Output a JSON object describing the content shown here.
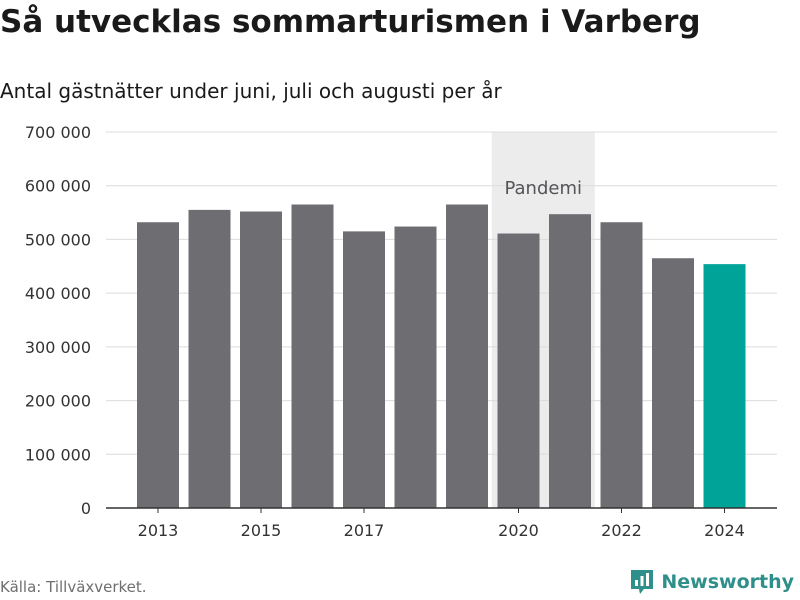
{
  "header": {
    "title": "Så utvecklas sommarturismen i Varberg",
    "subtitle": "Antal gästnätter under juni, juli och augusti per år"
  },
  "footer": {
    "source": "Källa: Tillväxverket.",
    "brand": "Newsworthy"
  },
  "colors": {
    "bar": "#6e6d72",
    "highlight": "#00a398",
    "band": "#ececec",
    "grid": "#dcdcdc",
    "brand": "#2f8f8a"
  },
  "chart_data": {
    "type": "bar",
    "title": "Så utvecklas sommarturismen i Varberg",
    "subtitle": "Antal gästnätter under juni, juli och augusti per år",
    "categories": [
      "2013",
      "2014",
      "2015",
      "2016",
      "2017",
      "2018",
      "2019",
      "2020",
      "2021",
      "2022",
      "2023",
      "2024"
    ],
    "values": [
      532000,
      555000,
      552000,
      565000,
      515000,
      524000,
      565000,
      511000,
      547000,
      532000,
      465000,
      454000
    ],
    "highlight_category": "2024",
    "x_tick_labels": [
      "2013",
      "2015",
      "2017",
      "2020",
      "2022",
      "2024"
    ],
    "y_ticks": [
      0,
      100000,
      200000,
      300000,
      400000,
      500000,
      600000,
      700000
    ],
    "y_tick_labels": [
      "0",
      "100 000",
      "200 000",
      "300 000",
      "400 000",
      "500 000",
      "600 000",
      "700 000"
    ],
    "ylim": [
      0,
      700000
    ],
    "grid": true,
    "annotation": {
      "label": "Pandemi",
      "from": "2020",
      "to": "2021"
    }
  }
}
